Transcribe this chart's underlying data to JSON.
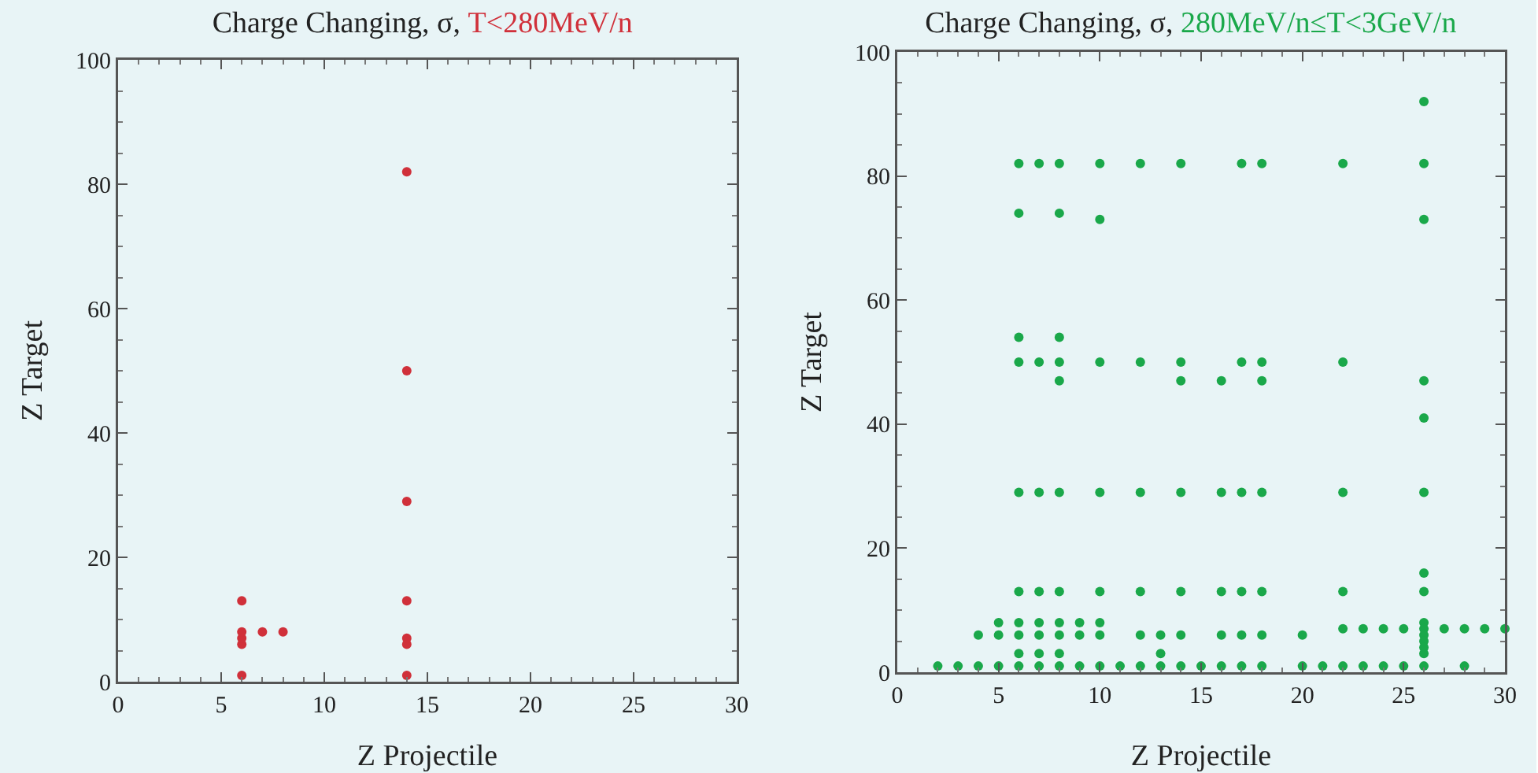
{
  "chart_data": [
    {
      "type": "scatter",
      "title": "Charge Changing, σ,",
      "subtitle": "T<280MeV/n",
      "xlabel": "Z Projectile",
      "ylabel": "Z Target",
      "xlim": [
        0,
        30
      ],
      "ylim": [
        0,
        100
      ],
      "xticks": [
        0,
        5,
        10,
        15,
        20,
        25,
        30
      ],
      "yticks": [
        0,
        20,
        40,
        60,
        80,
        100
      ],
      "grid": false,
      "legend": false,
      "marker": "circle",
      "series": [
        {
          "color": "#d0303a",
          "x": [
            6,
            6,
            6,
            6,
            6,
            7,
            8,
            14,
            14,
            14,
            14,
            14,
            14,
            14
          ],
          "values": [
            1,
            6,
            7,
            8,
            13,
            8,
            8,
            1,
            6,
            7,
            13,
            29,
            50,
            82
          ]
        }
      ]
    },
    {
      "type": "scatter",
      "title": "Charge Changing, σ,",
      "subtitle": "280MeV/n≤T<3GeV/n",
      "xlabel": "Z Projectile",
      "ylabel": "Z Target",
      "xlim": [
        0,
        30
      ],
      "ylim": [
        0,
        100
      ],
      "xticks": [
        0,
        5,
        10,
        15,
        20,
        25,
        30
      ],
      "yticks": [
        0,
        20,
        40,
        60,
        80,
        100
      ],
      "grid": false,
      "legend": false,
      "marker": "circle",
      "series": [
        {
          "color": "#1aa84a",
          "x": [
            26,
            6,
            7,
            8,
            10,
            12,
            14,
            17,
            18,
            22,
            26,
            6,
            8,
            10,
            26,
            6,
            8,
            6,
            7,
            8,
            10,
            12,
            14,
            17,
            18,
            22,
            8,
            14,
            16,
            18,
            26,
            26,
            6,
            7,
            8,
            10,
            12,
            14,
            16,
            17,
            18,
            22,
            26,
            26,
            6,
            7,
            8,
            10,
            12,
            14,
            16,
            17,
            18,
            22,
            26,
            5,
            6,
            7,
            8,
            9,
            10,
            4,
            5,
            6,
            7,
            8,
            9,
            10,
            12,
            13,
            14,
            16,
            17,
            18,
            20,
            22,
            23,
            24,
            25,
            27,
            28,
            29,
            30,
            26,
            26,
            26,
            26,
            26,
            26,
            6,
            7,
            8,
            13,
            2,
            3,
            4,
            5,
            6,
            7,
            8,
            9,
            10,
            11,
            12,
            13,
            14,
            15,
            16,
            17,
            18,
            20,
            21,
            22,
            23,
            24,
            25,
            26,
            28
          ],
          "values": [
            92,
            82,
            82,
            82,
            82,
            82,
            82,
            82,
            82,
            82,
            82,
            74,
            74,
            73,
            73,
            54,
            54,
            50,
            50,
            50,
            50,
            50,
            50,
            50,
            50,
            50,
            47,
            47,
            47,
            47,
            47,
            41,
            29,
            29,
            29,
            29,
            29,
            29,
            29,
            29,
            29,
            29,
            29,
            16,
            13,
            13,
            13,
            13,
            13,
            13,
            13,
            13,
            13,
            13,
            13,
            8,
            8,
            8,
            8,
            8,
            8,
            6,
            6,
            6,
            6,
            6,
            6,
            6,
            6,
            6,
            6,
            6,
            6,
            6,
            6,
            7,
            7,
            7,
            7,
            7,
            7,
            7,
            7,
            8,
            7,
            6,
            5,
            4,
            3,
            3,
            3,
            3,
            3,
            1,
            1,
            1,
            1,
            1,
            1,
            1,
            1,
            1,
            1,
            1,
            1,
            1,
            1,
            1,
            1,
            1,
            1,
            1,
            1,
            1,
            1,
            1,
            1,
            1
          ]
        }
      ]
    }
  ]
}
